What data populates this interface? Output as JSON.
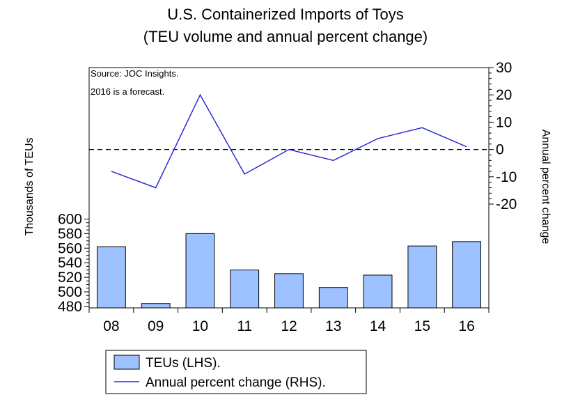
{
  "chart_data": {
    "type": "bar",
    "title": "U.S. Containerized Imports of Toys",
    "subtitle": "(TEU volume and annual percent change)",
    "categories": [
      "08",
      "09",
      "10",
      "11",
      "12",
      "13",
      "14",
      "15",
      "16"
    ],
    "series": [
      {
        "name": "TEUs (LHS).",
        "type": "bar",
        "axis": "left",
        "color": "#9ec2ff",
        "values": [
          562,
          484,
          580,
          530,
          525,
          506,
          523,
          563,
          569
        ]
      },
      {
        "name": "Annual percent change (RHS).",
        "type": "line",
        "axis": "right",
        "color": "#2b2bd6",
        "values": [
          -8,
          -14,
          20,
          -9,
          0,
          -4,
          4,
          8,
          1
        ]
      }
    ],
    "ylabel": "Thousands of TEUs",
    "ylabel_right": "Annual percent change",
    "ylim": [
      478,
      808
    ],
    "yticks": [
      480,
      500,
      520,
      540,
      560,
      580,
      600
    ],
    "ylim_right": [
      -58,
      30
    ],
    "yticks_right": [
      -20,
      -10,
      0,
      10,
      20,
      30
    ],
    "zero_line": 0,
    "notes": [
      "Source: JOC Insights.",
      "2016 is a forecast."
    ],
    "legend_position": "bottom-left",
    "grid": false
  }
}
